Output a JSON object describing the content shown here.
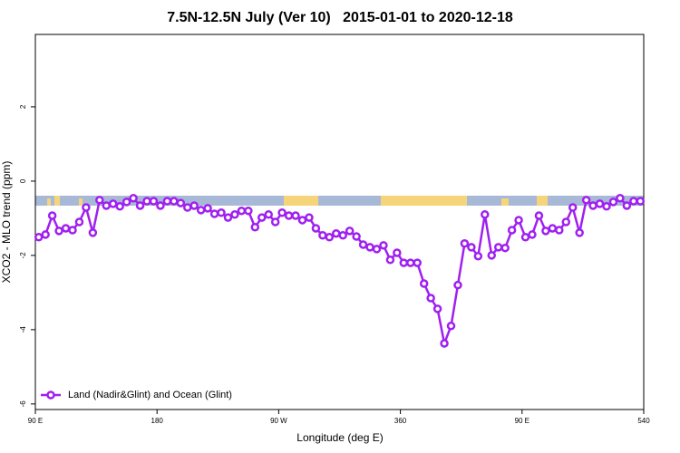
{
  "chart_data": {
    "type": "line",
    "title": "7.5N-12.5N July (Ver 10)   2015-01-01 to 2020-12-18",
    "xlabel": "Longitude (deg E)",
    "ylabel": "XCO2 - MLO trend (ppm)",
    "x": [
      92.5,
      97.5,
      102.5,
      107.5,
      112.5,
      117.5,
      122.5,
      127.5,
      132.5,
      137.5,
      142.5,
      147.5,
      152.5,
      157.5,
      162.5,
      167.5,
      172.5,
      177.5,
      182.5,
      187.5,
      192.5,
      197.5,
      202.5,
      207.5,
      212.5,
      217.5,
      222.5,
      227.5,
      232.5,
      237.5,
      242.5,
      247.5,
      252.5,
      257.5,
      262.5,
      267.5,
      272.5,
      277.5,
      282.5,
      287.5,
      292.5,
      297.5,
      302.5,
      307.5,
      312.5,
      317.5,
      322.5,
      327.5,
      332.5,
      337.5,
      342.5,
      347.5,
      352.5,
      357.5,
      362.5,
      367.5,
      372.5,
      377.5,
      382.5,
      387.5,
      392.5,
      397.5,
      402.5,
      407.5,
      412.5,
      417.5,
      422.5,
      427.5,
      432.5,
      437.5,
      442.5,
      447.5,
      452.5,
      457.5,
      462.5,
      467.5,
      472.5,
      477.5,
      482.5,
      487.5,
      492.5,
      497.5,
      502.5,
      507.5,
      512.5,
      517.5,
      522.5,
      527.5,
      532.5,
      537.5
    ],
    "series": [
      {
        "name": "Land (Nadir&Glint) and Ocean (Glint)",
        "color": "#a020f0",
        "values": [
          -1.51,
          -1.44,
          -0.93,
          -1.34,
          -1.27,
          -1.32,
          -1.1,
          -0.71,
          -1.39,
          -0.51,
          -0.66,
          -0.61,
          -0.68,
          -0.56,
          -0.46,
          -0.66,
          -0.54,
          -0.54,
          -0.66,
          -0.54,
          -0.54,
          -0.59,
          -0.71,
          -0.66,
          -0.78,
          -0.73,
          -0.88,
          -0.85,
          -0.98,
          -0.9,
          -0.8,
          -0.8,
          -1.24,
          -0.98,
          -0.9,
          -1.1,
          -0.85,
          -0.93,
          -0.93,
          -1.05,
          -0.98,
          -1.27,
          -1.46,
          -1.51,
          -1.41,
          -1.46,
          -1.34,
          -1.49,
          -1.71,
          -1.78,
          -1.83,
          -1.73,
          -2.12,
          -1.93,
          -2.2,
          -2.2,
          -2.2,
          -2.76,
          -3.15,
          -3.44,
          -4.37,
          -3.9,
          -2.8,
          -1.68,
          -1.78,
          -2.02,
          -0.9,
          -2.0,
          -1.78,
          -1.8,
          -1.32,
          -1.05,
          -1.51,
          -1.44,
          -0.93,
          -1.34,
          -1.27,
          -1.32,
          -1.1,
          -0.71,
          -1.39,
          -0.51,
          -0.66,
          -0.61,
          -0.68,
          -0.56,
          -0.46,
          -0.66,
          -0.54,
          -0.54
        ]
      }
    ],
    "xlim": [
      90,
      540
    ],
    "xticks": [
      {
        "value": 90,
        "label": "90 E"
      },
      180,
      {
        "value": 270,
        "label": "90 W"
      },
      360,
      {
        "value": 450,
        "label": "90 E"
      },
      540
    ],
    "ylim": [
      -6.15,
      3.95
    ],
    "yticks": [
      2,
      0,
      -2,
      -4,
      -6
    ],
    "legend": "bottom-left"
  }
}
